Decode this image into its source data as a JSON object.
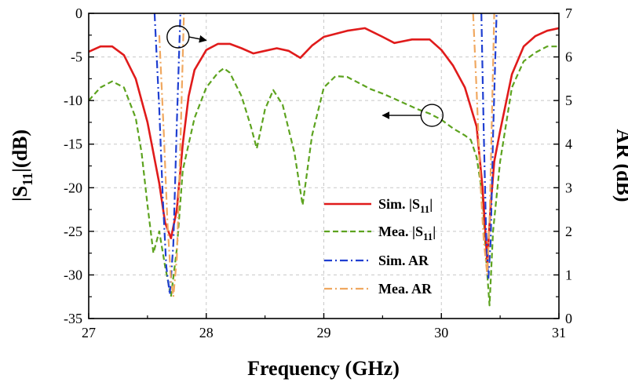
{
  "chart_data": {
    "type": "line",
    "x_axis": {
      "label": "Frequency (GHz)",
      "range": [
        27,
        31
      ],
      "ticks": [
        27,
        28,
        29,
        30,
        31
      ]
    },
    "y_axis_left": {
      "label_main": "|S",
      "label_sub": "11",
      "label_tail": "|(dB)",
      "range": [
        -35,
        0
      ],
      "ticks": [
        0,
        -5,
        -10,
        -15,
        -20,
        -25,
        -30,
        -35
      ]
    },
    "y_axis_right": {
      "label": "AR (dB)",
      "range": [
        0,
        7
      ],
      "ticks": [
        0,
        1,
        2,
        3,
        4,
        5,
        6,
        7
      ]
    },
    "grid": true,
    "legend_position": "right-middle",
    "series": [
      {
        "id": "sim-s11",
        "legend_main": "Sim. |S",
        "legend_sub": "11",
        "legend_tail": "|",
        "axis": "left",
        "color": "#e01b1b",
        "style": "solid",
        "points": [
          [
            27.0,
            -4.4
          ],
          [
            27.1,
            -3.8
          ],
          [
            27.2,
            -3.8
          ],
          [
            27.3,
            -4.8
          ],
          [
            27.4,
            -7.5
          ],
          [
            27.5,
            -12.5
          ],
          [
            27.6,
            -19.5
          ],
          [
            27.65,
            -24.0
          ],
          [
            27.7,
            -25.8
          ],
          [
            27.75,
            -22.5
          ],
          [
            27.8,
            -15.0
          ],
          [
            27.85,
            -9.5
          ],
          [
            27.9,
            -6.5
          ],
          [
            28.0,
            -4.2
          ],
          [
            28.1,
            -3.5
          ],
          [
            28.2,
            -3.5
          ],
          [
            28.3,
            -4.0
          ],
          [
            28.4,
            -4.6
          ],
          [
            28.5,
            -4.3
          ],
          [
            28.6,
            -4.0
          ],
          [
            28.7,
            -4.3
          ],
          [
            28.8,
            -5.1
          ],
          [
            28.9,
            -3.7
          ],
          [
            29.0,
            -2.7
          ],
          [
            29.2,
            -2.0
          ],
          [
            29.35,
            -1.7
          ],
          [
            29.5,
            -2.7
          ],
          [
            29.6,
            -3.4
          ],
          [
            29.75,
            -3.0
          ],
          [
            29.9,
            -3.0
          ],
          [
            30.0,
            -4.2
          ],
          [
            30.1,
            -6.0
          ],
          [
            30.2,
            -8.5
          ],
          [
            30.3,
            -13.0
          ],
          [
            30.35,
            -20.0
          ],
          [
            30.39,
            -28.5
          ],
          [
            30.42,
            -22.0
          ],
          [
            30.45,
            -17.0
          ],
          [
            30.5,
            -13.5
          ],
          [
            30.6,
            -7.0
          ],
          [
            30.7,
            -3.8
          ],
          [
            30.8,
            -2.6
          ],
          [
            30.9,
            -2.0
          ],
          [
            31.0,
            -1.7
          ]
        ]
      },
      {
        "id": "mea-s11",
        "legend_main": "Mea. |S",
        "legend_sub": "11",
        "legend_tail": "|",
        "axis": "left",
        "color": "#5da31f",
        "style": "dash",
        "points": [
          [
            27.0,
            -10.0
          ],
          [
            27.1,
            -8.5
          ],
          [
            27.2,
            -7.8
          ],
          [
            27.3,
            -8.5
          ],
          [
            27.4,
            -12.0
          ],
          [
            27.45,
            -16.0
          ],
          [
            27.5,
            -22.0
          ],
          [
            27.55,
            -27.5
          ],
          [
            27.6,
            -25.0
          ],
          [
            27.65,
            -29.0
          ],
          [
            27.7,
            -32.5
          ],
          [
            27.75,
            -27.0
          ],
          [
            27.8,
            -18.0
          ],
          [
            27.9,
            -12.0
          ],
          [
            28.0,
            -8.5
          ],
          [
            28.1,
            -6.8
          ],
          [
            28.15,
            -6.3
          ],
          [
            28.2,
            -6.8
          ],
          [
            28.3,
            -9.5
          ],
          [
            28.38,
            -13.0
          ],
          [
            28.43,
            -15.5
          ],
          [
            28.5,
            -11.0
          ],
          [
            28.57,
            -8.8
          ],
          [
            28.65,
            -10.5
          ],
          [
            28.75,
            -16.0
          ],
          [
            28.82,
            -22.0
          ],
          [
            28.9,
            -14.0
          ],
          [
            29.0,
            -8.5
          ],
          [
            29.1,
            -7.2
          ],
          [
            29.2,
            -7.3
          ],
          [
            29.3,
            -8.0
          ],
          [
            29.4,
            -8.7
          ],
          [
            29.5,
            -9.2
          ],
          [
            29.6,
            -9.8
          ],
          [
            29.7,
            -10.4
          ],
          [
            29.8,
            -11.0
          ],
          [
            29.9,
            -11.5
          ],
          [
            30.0,
            -12.2
          ],
          [
            30.1,
            -13.2
          ],
          [
            30.2,
            -14.0
          ],
          [
            30.25,
            -14.5
          ],
          [
            30.3,
            -16.5
          ],
          [
            30.35,
            -21.0
          ],
          [
            30.38,
            -28.0
          ],
          [
            30.41,
            -33.5
          ],
          [
            30.44,
            -25.0
          ],
          [
            30.5,
            -17.0
          ],
          [
            30.6,
            -8.5
          ],
          [
            30.7,
            -5.5
          ],
          [
            30.8,
            -4.5
          ],
          [
            30.9,
            -3.8
          ],
          [
            31.0,
            -3.8
          ]
        ]
      },
      {
        "id": "sim-ar",
        "legend_main": "Sim. AR",
        "axis": "right",
        "color": "#1f3fd1",
        "style": "dashdot",
        "branches": [
          [
            [
              27.56,
              7.0
            ],
            [
              27.6,
              4.8
            ],
            [
              27.63,
              2.8
            ],
            [
              27.66,
              1.2
            ],
            [
              27.69,
              0.55
            ],
            [
              27.72,
              1.7
            ],
            [
              27.75,
              4.5
            ],
            [
              27.78,
              7.0
            ]
          ],
          [
            [
              30.34,
              7.0
            ],
            [
              30.36,
              4.3
            ],
            [
              30.38,
              2.0
            ],
            [
              30.4,
              0.9
            ],
            [
              30.42,
              1.8
            ],
            [
              30.44,
              4.2
            ],
            [
              30.47,
              7.0
            ]
          ]
        ]
      },
      {
        "id": "mea-ar",
        "legend_main": "Mea. AR",
        "axis": "right",
        "color": "#f0a860",
        "style": "dashdot",
        "branches": [
          [
            [
              27.6,
              6.5
            ],
            [
              27.64,
              4.2
            ],
            [
              27.67,
              2.2
            ],
            [
              27.7,
              0.9
            ],
            [
              27.72,
              0.5
            ],
            [
              27.75,
              1.4
            ],
            [
              27.78,
              4.0
            ],
            [
              27.81,
              7.0
            ]
          ],
          [
            [
              30.27,
              7.0
            ],
            [
              30.3,
              5.2
            ],
            [
              30.33,
              3.2
            ],
            [
              30.36,
              1.8
            ],
            [
              30.39,
              1.0
            ],
            [
              30.41,
              2.2
            ],
            [
              30.43,
              4.6
            ],
            [
              30.45,
              7.0
            ]
          ]
        ]
      }
    ],
    "annotations": [
      {
        "id": "ar-axis-marker",
        "center": [
          27.76,
          -2.7
        ],
        "arrow_to": [
          28.0,
          -3.1
        ],
        "direction": "right"
      },
      {
        "id": "s11-axis-marker",
        "center": [
          29.92,
          -11.7
        ],
        "arrow_to": [
          29.5,
          -11.7
        ],
        "direction": "left"
      }
    ]
  }
}
